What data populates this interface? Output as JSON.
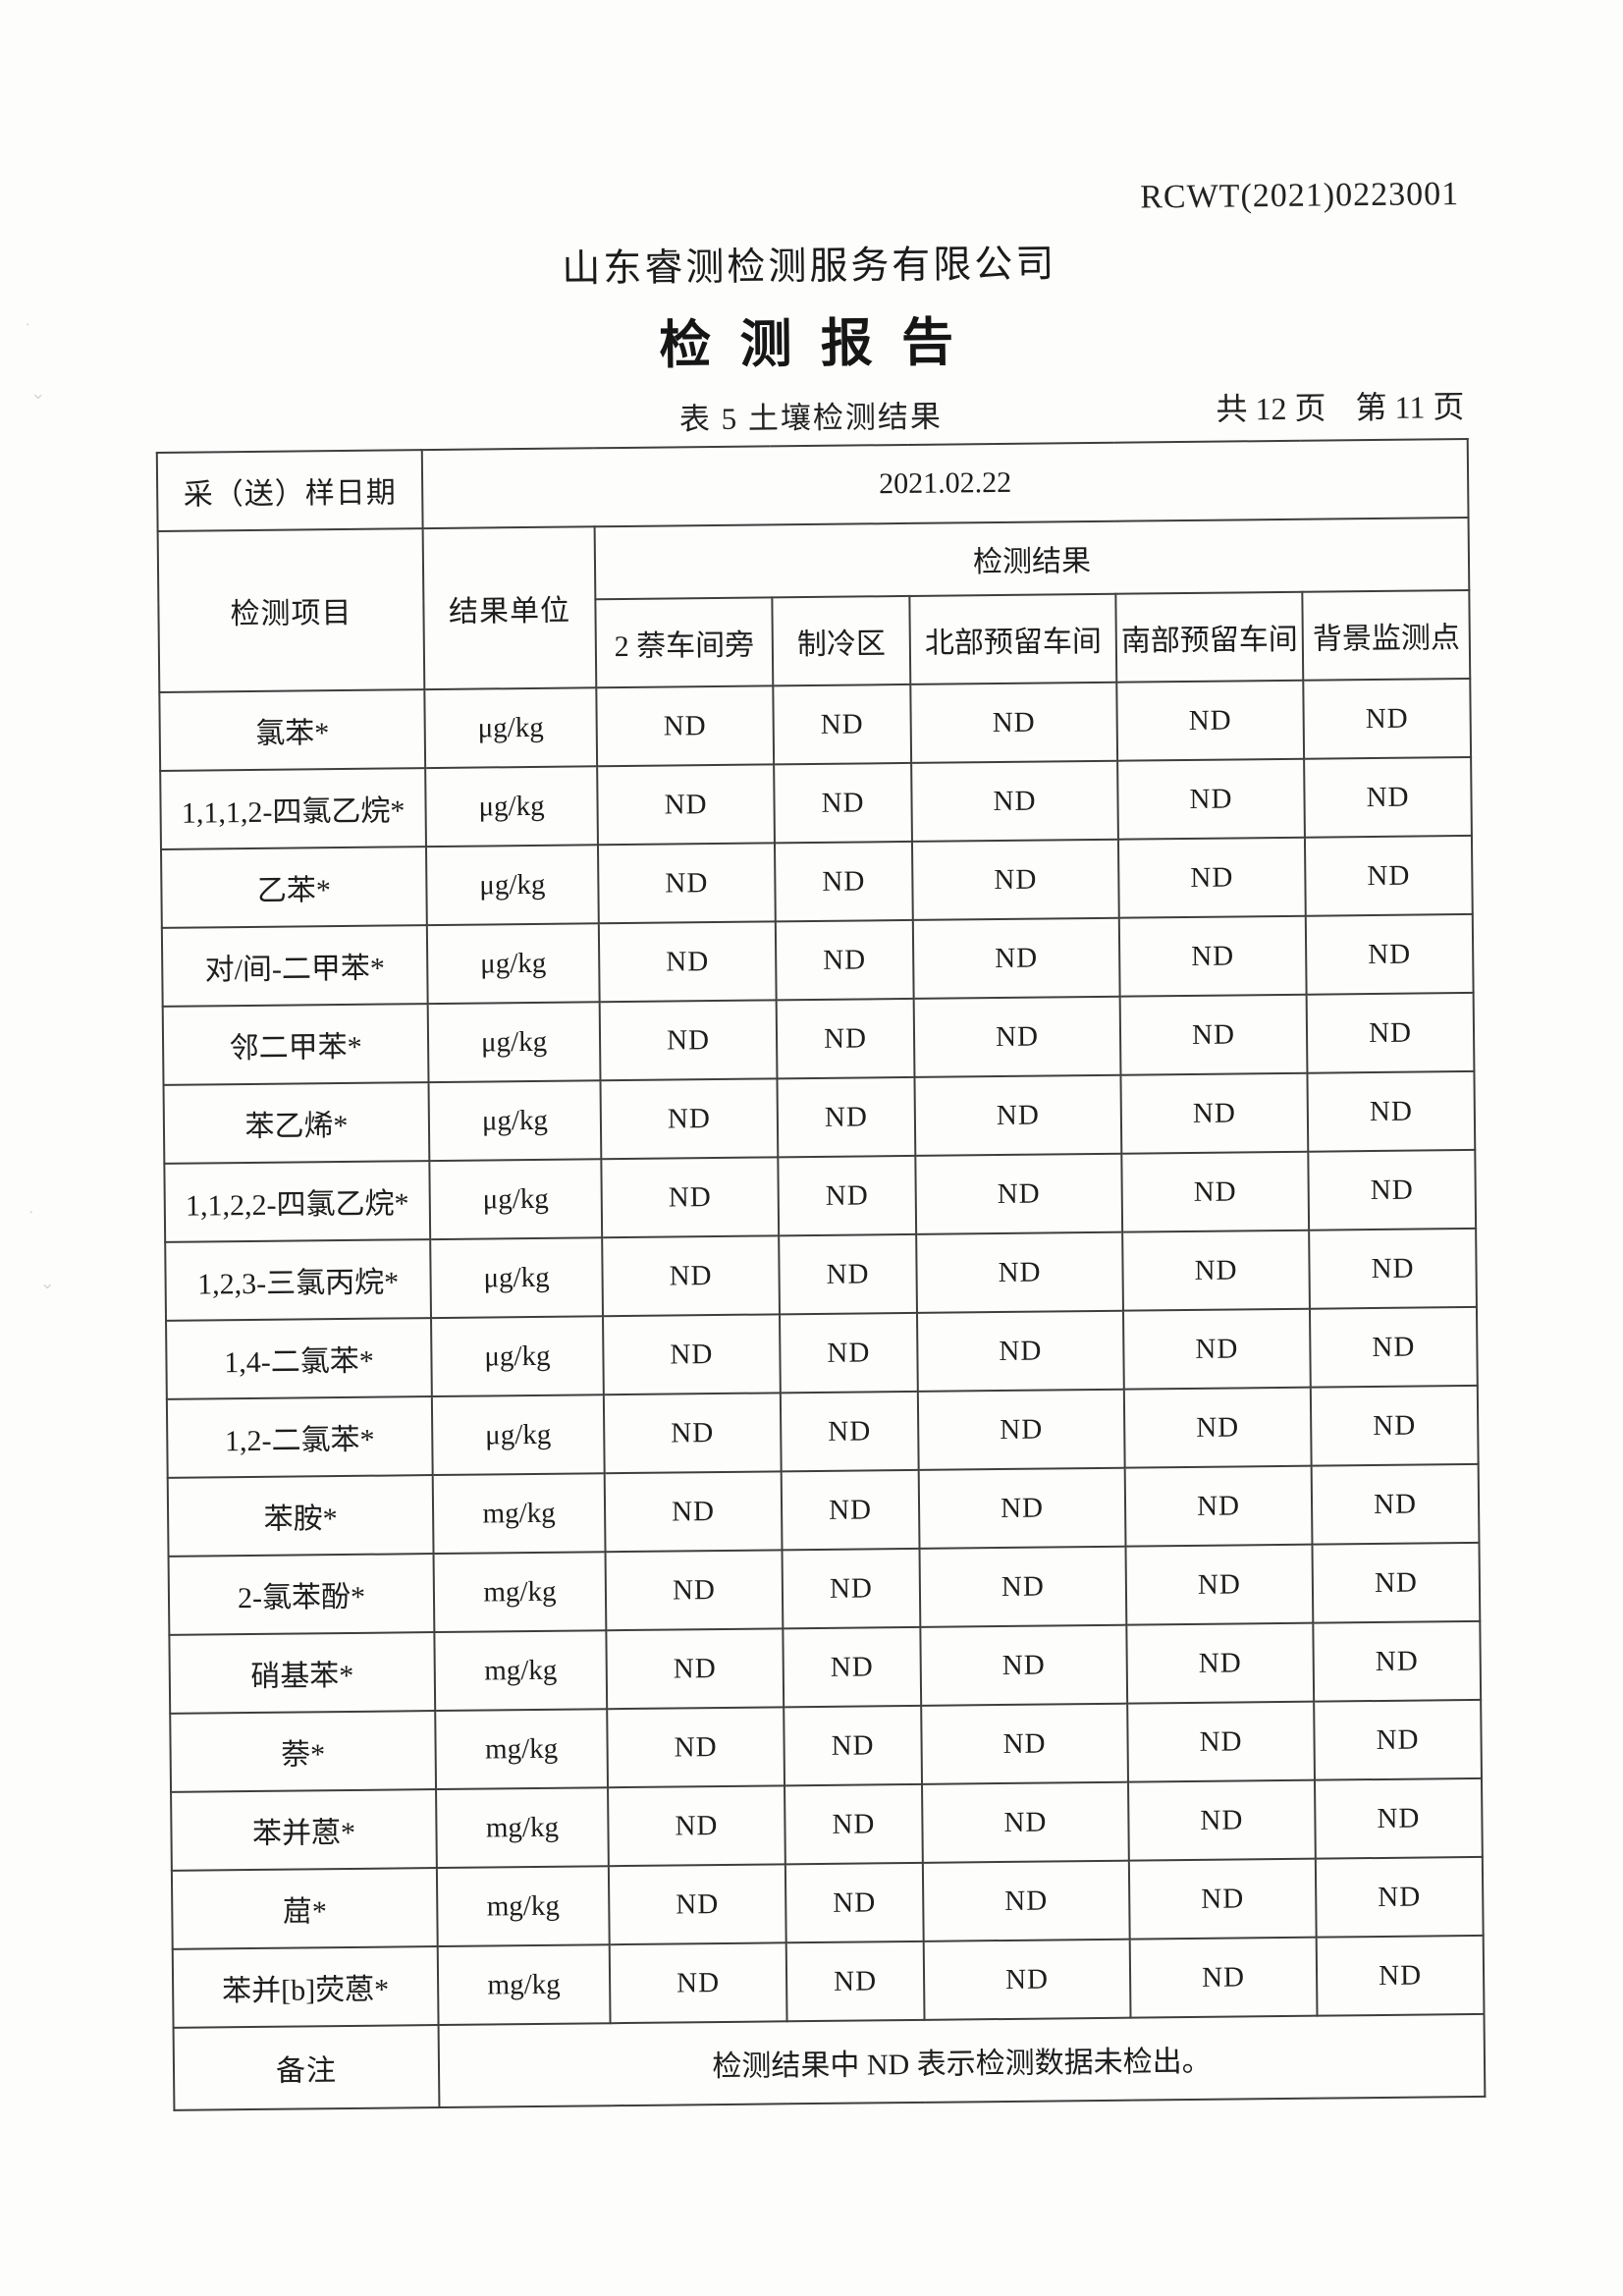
{
  "header": {
    "report_code": "RCWT(2021)0223001",
    "company_name": "山东睿测检测服务有限公司",
    "report_title": "检 测 报 告",
    "table_caption": "表 5 土壤检测结果",
    "page_total": "共 12 页",
    "page_current": "第 11 页"
  },
  "table": {
    "sample_date_label": "采（送）样日期",
    "sample_date_value": "2021.02.22",
    "item_header": "检测项目",
    "unit_header": "结果单位",
    "result_header": "检测结果",
    "location_headers": [
      "2 萘车间旁",
      "制冷区",
      "北部预留车间",
      "南部预留车间",
      "背景监测点"
    ],
    "rows": [
      {
        "item": "氯苯*",
        "unit": "μg/kg",
        "values": [
          "ND",
          "ND",
          "ND",
          "ND",
          "ND"
        ]
      },
      {
        "item": "1,1,1,2-四氯乙烷*",
        "unit": "μg/kg",
        "values": [
          "ND",
          "ND",
          "ND",
          "ND",
          "ND"
        ]
      },
      {
        "item": "乙苯*",
        "unit": "μg/kg",
        "values": [
          "ND",
          "ND",
          "ND",
          "ND",
          "ND"
        ]
      },
      {
        "item": "对/间-二甲苯*",
        "unit": "μg/kg",
        "values": [
          "ND",
          "ND",
          "ND",
          "ND",
          "ND"
        ]
      },
      {
        "item": "邻二甲苯*",
        "unit": "μg/kg",
        "values": [
          "ND",
          "ND",
          "ND",
          "ND",
          "ND"
        ]
      },
      {
        "item": "苯乙烯*",
        "unit": "μg/kg",
        "values": [
          "ND",
          "ND",
          "ND",
          "ND",
          "ND"
        ]
      },
      {
        "item": "1,1,2,2-四氯乙烷*",
        "unit": "μg/kg",
        "values": [
          "ND",
          "ND",
          "ND",
          "ND",
          "ND"
        ]
      },
      {
        "item": "1,2,3-三氯丙烷*",
        "unit": "μg/kg",
        "values": [
          "ND",
          "ND",
          "ND",
          "ND",
          "ND"
        ]
      },
      {
        "item": "1,4-二氯苯*",
        "unit": "μg/kg",
        "values": [
          "ND",
          "ND",
          "ND",
          "ND",
          "ND"
        ]
      },
      {
        "item": "1,2-二氯苯*",
        "unit": "μg/kg",
        "values": [
          "ND",
          "ND",
          "ND",
          "ND",
          "ND"
        ]
      },
      {
        "item": "苯胺*",
        "unit": "mg/kg",
        "values": [
          "ND",
          "ND",
          "ND",
          "ND",
          "ND"
        ]
      },
      {
        "item": "2-氯苯酚*",
        "unit": "mg/kg",
        "values": [
          "ND",
          "ND",
          "ND",
          "ND",
          "ND"
        ]
      },
      {
        "item": "硝基苯*",
        "unit": "mg/kg",
        "values": [
          "ND",
          "ND",
          "ND",
          "ND",
          "ND"
        ]
      },
      {
        "item": "萘*",
        "unit": "mg/kg",
        "values": [
          "ND",
          "ND",
          "ND",
          "ND",
          "ND"
        ]
      },
      {
        "item": "苯并蒽*",
        "unit": "mg/kg",
        "values": [
          "ND",
          "ND",
          "ND",
          "ND",
          "ND"
        ]
      },
      {
        "item": "䓛*",
        "unit": "mg/kg",
        "values": [
          "ND",
          "ND",
          "ND",
          "ND",
          "ND"
        ]
      },
      {
        "item": "苯并[b]荧蒽*",
        "unit": "mg/kg",
        "values": [
          "ND",
          "ND",
          "ND",
          "ND",
          "ND"
        ]
      }
    ],
    "remark_label": "备注",
    "remark_text": "检测结果中 ND 表示检测数据未检出。"
  }
}
